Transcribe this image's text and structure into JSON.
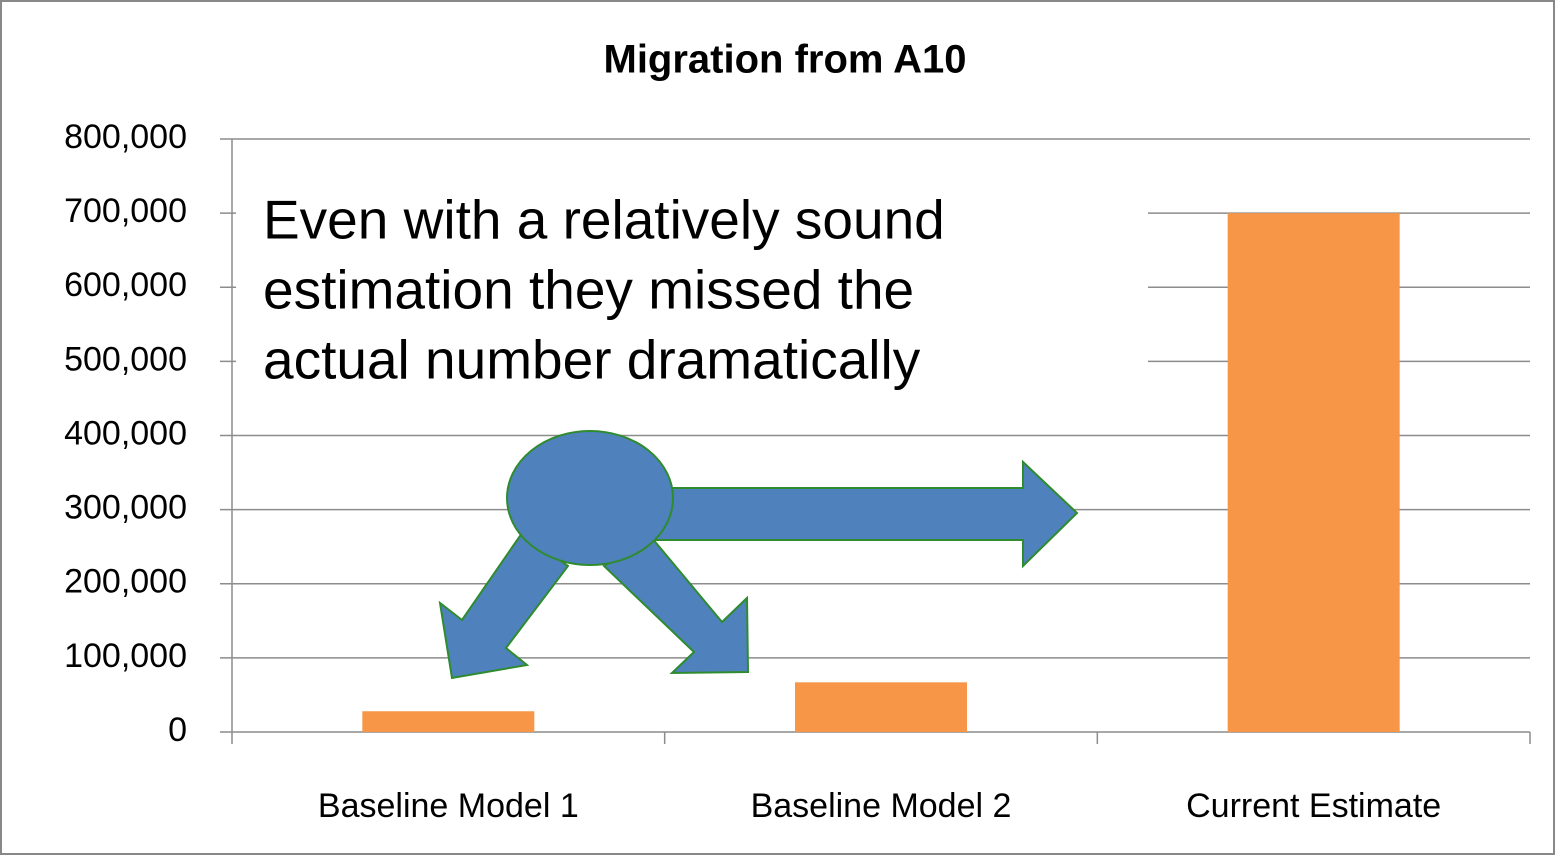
{
  "chart_data": {
    "type": "bar",
    "title": "Migration from A10",
    "annotation": [
      "Even with a relatively sound",
      "estimation they missed the",
      "actual number dramatically"
    ],
    "categories": [
      "Baseline Model 1",
      "Baseline Model 2",
      "Current Estimate"
    ],
    "values": [
      28000,
      67000,
      700000
    ],
    "color": "#f79646",
    "ylim": [
      0,
      800000
    ],
    "yticks": [
      {
        "value": 0,
        "label": "0"
      },
      {
        "value": 100000,
        "label": "100,000"
      },
      {
        "value": 200000,
        "label": "200,000"
      },
      {
        "value": 300000,
        "label": "300,000"
      },
      {
        "value": 400000,
        "label": "400,000"
      },
      {
        "value": 500000,
        "label": "500,000"
      },
      {
        "value": 600000,
        "label": "600,000"
      },
      {
        "value": 700000,
        "label": "700,000"
      },
      {
        "value": 800000,
        "label": "800,000"
      }
    ],
    "grid": true
  }
}
